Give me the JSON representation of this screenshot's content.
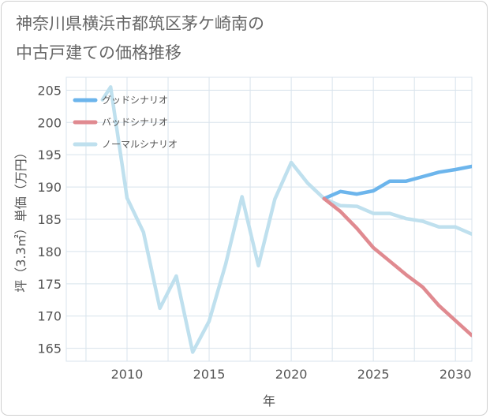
{
  "title_lines": [
    "神奈川県横浜市都筑区茅ケ崎南の",
    "中古戸建ての価格推移"
  ],
  "chart_data": {
    "type": "line",
    "xlabel": "年",
    "ylabel": "坪（3.3㎡）単価（万円）",
    "xlim": [
      2006.3,
      2031
    ],
    "ylim": [
      163,
      207
    ],
    "x_ticks": [
      2010,
      2015,
      2020,
      2025,
      2030
    ],
    "y_ticks": [
      165,
      170,
      175,
      180,
      185,
      190,
      195,
      200,
      205
    ],
    "grid": true,
    "legend_position": "top-left",
    "series": [
      {
        "name": "グッドシナリオ",
        "color": "#6cb5ec",
        "x": [
          2022,
          2023,
          2024,
          2025,
          2026,
          2027,
          2028,
          2029,
          2030,
          2031
        ],
        "y": [
          188.2,
          189.3,
          188.9,
          189.4,
          190.9,
          190.9,
          191.6,
          192.3,
          192.7,
          193.2
        ]
      },
      {
        "name": "バッドシナリオ",
        "color": "#e08a90",
        "x": [
          2022,
          2023,
          2024,
          2025,
          2026,
          2027,
          2028,
          2029,
          2030,
          2031
        ],
        "y": [
          188.2,
          186.2,
          183.6,
          180.6,
          178.5,
          176.4,
          174.5,
          171.6,
          169.3,
          167.0
        ]
      },
      {
        "name": "ノーマルシナリオ",
        "color": "#bfe0ee",
        "x": [
          2008.5,
          2009,
          2010,
          2011,
          2012,
          2013,
          2014,
          2015,
          2016,
          2017,
          2018,
          2019,
          2020,
          2021,
          2022,
          2023,
          2024,
          2025,
          2026,
          2027,
          2028,
          2029,
          2030,
          2031
        ],
        "y": [
          203.5,
          205.5,
          188.3,
          183.0,
          171.2,
          176.2,
          164.4,
          169.2,
          178.0,
          188.5,
          177.8,
          188.1,
          193.8,
          190.6,
          188.2,
          187.1,
          187.0,
          185.9,
          185.9,
          185.1,
          184.7,
          183.8,
          183.8,
          182.7
        ]
      }
    ]
  }
}
